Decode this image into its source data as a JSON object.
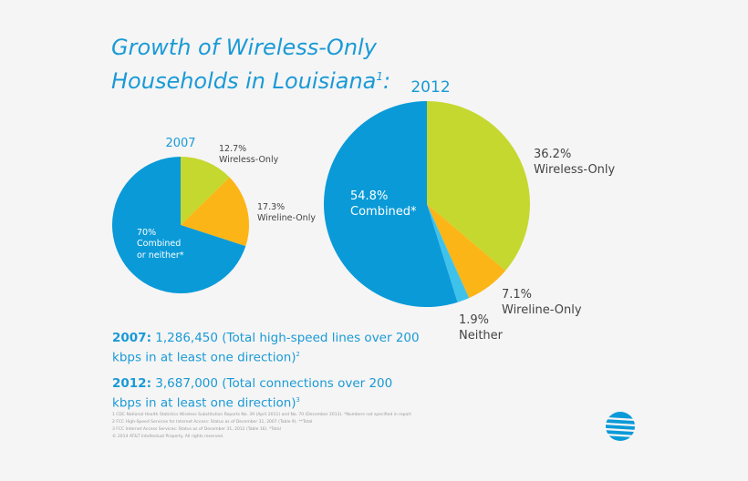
{
  "header": {
    "title": "Growth of Wireless-Only Households in Louisiana",
    "title_note": "1",
    "title_end": ":"
  },
  "chart_data": [
    {
      "type": "pie",
      "title": "2007",
      "categories": [
        "Wireless-Only",
        "Wireline-Only",
        "Combined or neither*"
      ],
      "values": [
        12.7,
        17.3,
        70
      ],
      "value_labels": [
        "12.7%",
        "17.3%",
        "70%"
      ],
      "colors": [
        "#c5d82f",
        "#fcb516",
        "#0a9ad8"
      ]
    },
    {
      "type": "pie",
      "title": "2012",
      "categories": [
        "Wireless-Only",
        "Wireline-Only",
        "Neither",
        "Combined*"
      ],
      "values": [
        36.2,
        7.1,
        1.9,
        54.8
      ],
      "value_labels": [
        "36.2%",
        "7.1%",
        "1.9%",
        "54.8%"
      ],
      "colors": [
        "#c5d82f",
        "#fcb516",
        "#3ec2ec",
        "#0a9ad8"
      ]
    }
  ],
  "stats": [
    {
      "year": "2007:",
      "text": "1,286,450 (Total high-speed lines over 200 kbps in at least one direction)",
      "note": "2"
    },
    {
      "year": "2012:",
      "text": "3,687,000 (Total connections over 200 kbps in at least one direction)",
      "note": "3"
    }
  ],
  "footnotes": [
    "1 CDC National Health Statistics Wireless Substitution Reports No. 39 (April 2011) and No. 70 (December 2013). *Numbers not specified in report",
    "2 FCC High-Speed Services for Internet Access: Status as of December 31, 2007 (Table 9). **Total",
    "3 FCC Internet Access Services: Status as of December 31, 2012 (Table 16). *Total",
    "© 2014 AT&T Intellectual Property. All rights reserved."
  ]
}
